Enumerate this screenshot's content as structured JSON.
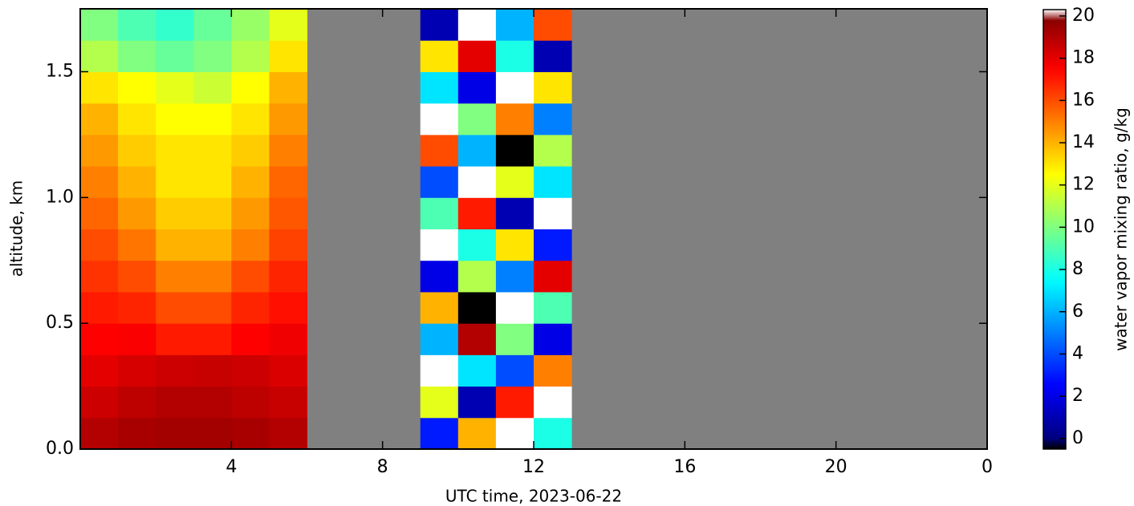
{
  "chart_data": {
    "type": "heatmap",
    "x_label": "UTC time,  2023-06-22",
    "y_label": "altitude, km",
    "colorbar_label": "water vapor mixing ratio, g/kg",
    "colormap": "jet",
    "missing_color": "#808080",
    "x": [
      0,
      1,
      2,
      3,
      4,
      5,
      6,
      7,
      8,
      9,
      10,
      11,
      12,
      13,
      14,
      15,
      16,
      17,
      18,
      19,
      20,
      21,
      22,
      23,
      24
    ],
    "y": [
      0,
      0.125,
      0.25,
      0.375,
      0.5,
      0.625,
      0.75,
      0.875,
      1.0,
      1.125,
      1.25,
      1.375,
      1.5,
      1.625,
      1.75
    ],
    "z": [
      [
        19,
        19.2,
        19.3,
        19.3,
        19.2,
        19,
        null,
        null,
        null,
        3,
        14,
        20.5,
        8,
        null,
        null,
        null,
        null,
        null,
        null,
        null,
        null,
        null,
        null,
        null
      ],
      [
        18.5,
        18.8,
        19,
        19,
        18.8,
        18.6,
        null,
        null,
        null,
        12,
        1,
        17,
        20.5,
        null,
        null,
        null,
        null,
        null,
        null,
        null,
        null,
        null,
        null,
        null
      ],
      [
        18,
        18.3,
        18.5,
        18.6,
        18.5,
        18.2,
        null,
        null,
        null,
        20.5,
        7,
        4,
        15,
        null,
        null,
        null,
        null,
        null,
        null,
        null,
        null,
        null,
        null,
        null
      ],
      [
        17.5,
        17.6,
        17,
        17,
        17.5,
        17.8,
        null,
        null,
        null,
        6,
        19,
        10,
        2,
        null,
        null,
        null,
        null,
        null,
        null,
        null,
        null,
        null,
        null,
        null
      ],
      [
        17,
        16.8,
        16,
        16,
        16.8,
        17.2,
        null,
        null,
        null,
        14,
        -0.5,
        20.5,
        9,
        null,
        null,
        null,
        null,
        null,
        null,
        null,
        null,
        null,
        null,
        null
      ],
      [
        16.5,
        16,
        15,
        15,
        16,
        16.8,
        null,
        null,
        null,
        2,
        11,
        5,
        18,
        null,
        null,
        null,
        null,
        null,
        null,
        null,
        null,
        null,
        null,
        null
      ],
      [
        16,
        15.2,
        14,
        14,
        15,
        16.2,
        null,
        null,
        null,
        20.5,
        8,
        13,
        3,
        null,
        null,
        null,
        null,
        null,
        null,
        null,
        null,
        null,
        null,
        null
      ],
      [
        15.5,
        14.5,
        13.5,
        13.5,
        14.5,
        15.8,
        null,
        null,
        null,
        9,
        17,
        1,
        20.5,
        null,
        null,
        null,
        null,
        null,
        null,
        null,
        null,
        null,
        null,
        null
      ],
      [
        15,
        14,
        13,
        13,
        14,
        15.5,
        null,
        null,
        null,
        4,
        20.5,
        12,
        7,
        null,
        null,
        null,
        null,
        null,
        null,
        null,
        null,
        null,
        null,
        null
      ],
      [
        14.5,
        13.5,
        13,
        13,
        13.5,
        15,
        null,
        null,
        null,
        16,
        6,
        -0.5,
        11,
        null,
        null,
        null,
        null,
        null,
        null,
        null,
        null,
        null,
        null,
        null
      ],
      [
        14,
        13,
        12.5,
        12.5,
        13,
        14.5,
        null,
        null,
        null,
        20.5,
        10,
        15,
        5,
        null,
        null,
        null,
        null,
        null,
        null,
        null,
        null,
        null,
        null,
        null
      ],
      [
        13,
        12.5,
        12,
        11.5,
        12.5,
        14,
        null,
        null,
        null,
        7,
        2,
        20.5,
        13,
        null,
        null,
        null,
        null,
        null,
        null,
        null,
        null,
        null,
        null,
        null
      ],
      [
        11,
        10,
        9.5,
        10,
        11,
        13,
        null,
        null,
        null,
        13,
        18,
        8,
        1,
        null,
        null,
        null,
        null,
        null,
        null,
        null,
        null,
        null,
        null,
        null
      ],
      [
        10,
        9,
        8.5,
        9.5,
        10.5,
        12,
        null,
        null,
        null,
        1,
        20.5,
        6,
        16,
        null,
        null,
        null,
        null,
        null,
        null,
        null,
        null,
        null,
        null,
        null
      ]
    ],
    "xlim": [
      0,
      24
    ],
    "xticks": [
      4,
      8,
      12,
      16,
      20,
      {
        "value": 24,
        "label": "0"
      }
    ],
    "ylim": [
      0,
      1.75
    ],
    "yticks": [
      {
        "value": 0,
        "label": "0.0"
      },
      0.5,
      {
        "value": 1,
        "label": "1.0"
      },
      1.5
    ],
    "zlim": [
      -0.5,
      20.3
    ],
    "zticks": [
      0,
      2,
      4,
      6,
      8,
      10,
      12,
      14,
      16,
      18,
      20
    ]
  }
}
